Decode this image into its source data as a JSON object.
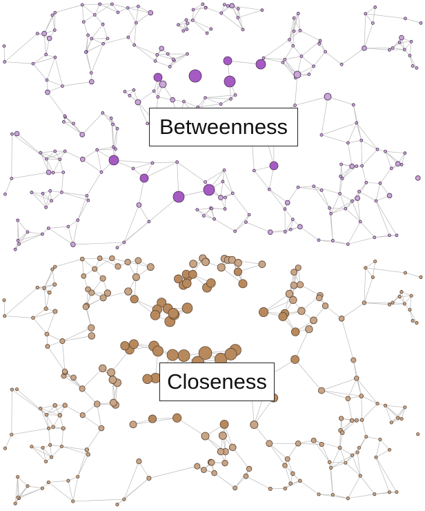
{
  "panels": [
    {
      "label": "Betweenness",
      "node_fill": "#c9a6d6",
      "node_fill_hub": "#a55bc2",
      "node_stroke": "#4a2d58",
      "edge_color": "#b8b8b8"
    },
    {
      "label": "Closeness",
      "node_fill": "#c8a587",
      "node_fill_hub": "#b8895c",
      "node_stroke": "#5a4331",
      "edge_color": "#b8b8b8"
    }
  ]
}
